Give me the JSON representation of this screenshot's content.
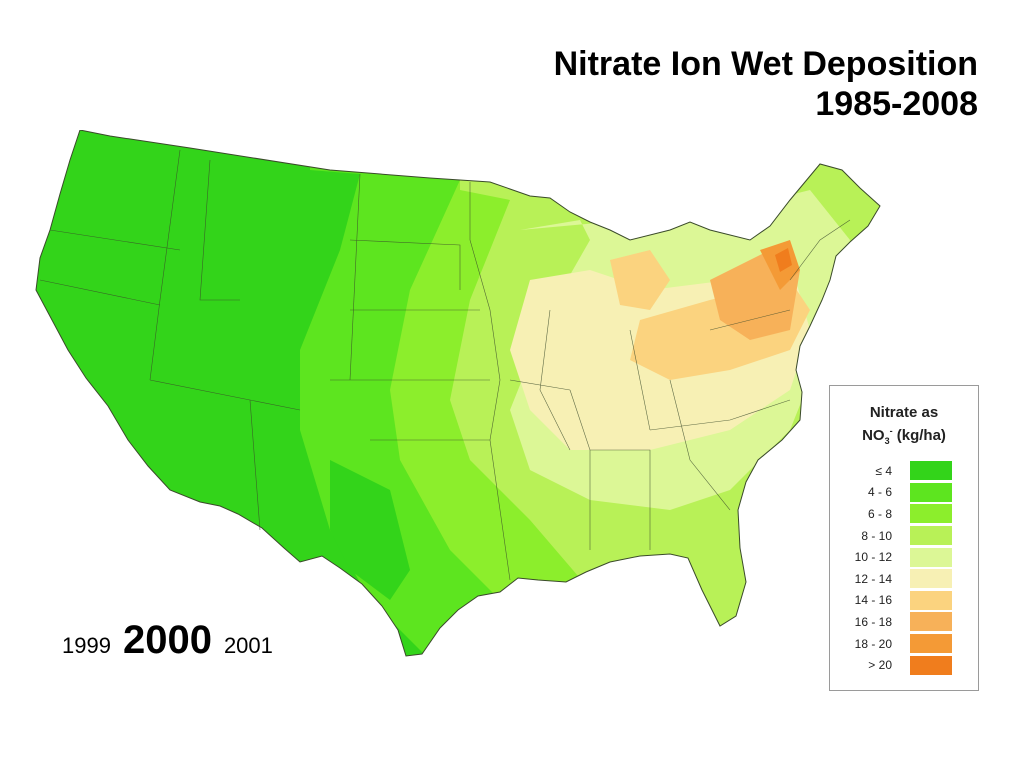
{
  "title": {
    "line1": "Nitrate Ion Wet Deposition",
    "line2": "1985-2008"
  },
  "years": {
    "previous": "1999",
    "current": "2000",
    "next": "2001"
  },
  "legend": {
    "title_line1": "Nitrate as",
    "title_line2_prefix": "NO",
    "title_line2_sub": "3",
    "title_line2_sup": "-",
    "title_line2_suffix": "(kg/ha)",
    "classes": [
      {
        "label": "≤ 4",
        "color": "#33d41a"
      },
      {
        "label": "4 - 6",
        "color": "#5de51f"
      },
      {
        "label": "6 - 8",
        "color": "#8cee2c"
      },
      {
        "label": "8 - 10",
        "color": "#b8f157"
      },
      {
        "label": "10 - 12",
        "color": "#dcf796"
      },
      {
        "label": "12 - 14",
        "color": "#f7f0b4"
      },
      {
        "label": "14 - 16",
        "color": "#fbd37f"
      },
      {
        "label": "16 - 18",
        "color": "#f7b159"
      },
      {
        "label": "18 - 20",
        "color": "#f49a36"
      },
      {
        "label": "> 20",
        "color": "#f07d1d"
      }
    ]
  }
}
